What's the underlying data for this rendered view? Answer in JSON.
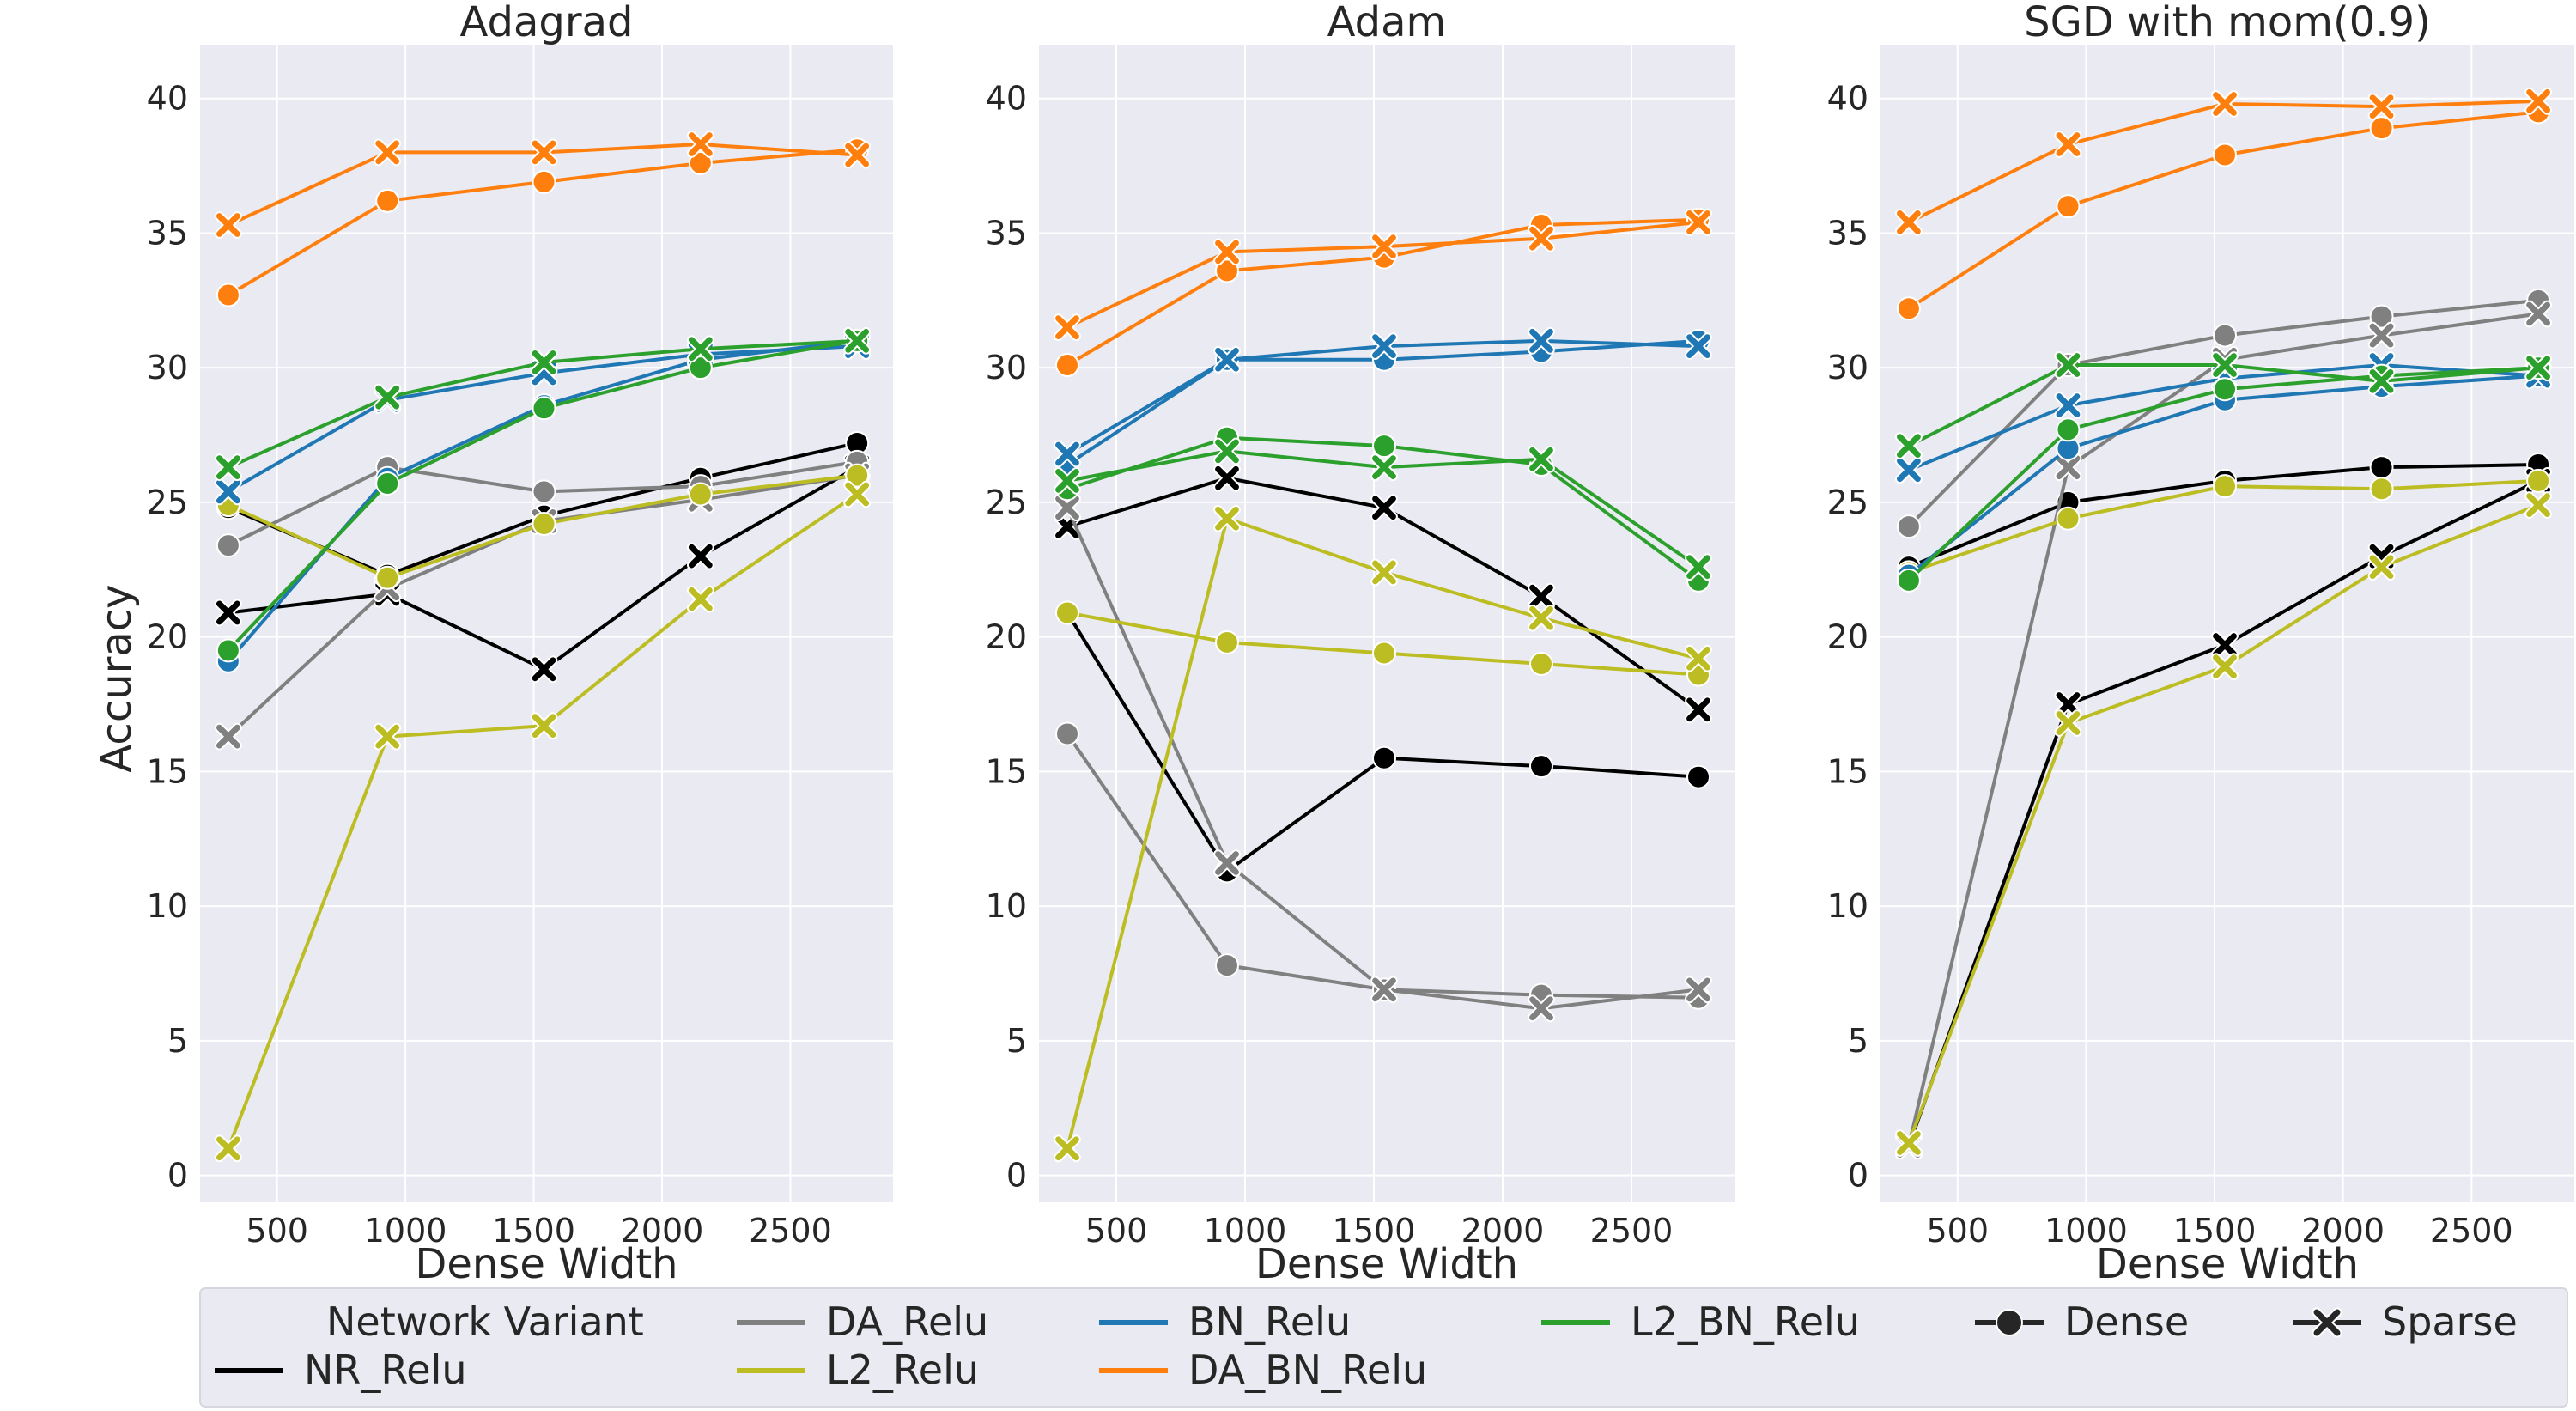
{
  "chart_data": {
    "type": "line",
    "y_axis_label": "Accuracy",
    "x_axis_label": "Dense Width",
    "x_ticks": [
      500,
      1000,
      1500,
      2000,
      2500
    ],
    "y_ticks": [
      0,
      5,
      10,
      15,
      20,
      25,
      30,
      35,
      40
    ],
    "xlim": [
      200,
      2900
    ],
    "ylim": [
      -1,
      42
    ],
    "x": [
      310,
      930,
      1540,
      2150,
      2760
    ],
    "legend": {
      "title": "Network Variant",
      "variants": [
        {
          "name": "NR_Relu",
          "color": "#000000"
        },
        {
          "name": "DA_Relu",
          "color": "#808080"
        },
        {
          "name": "L2_Relu",
          "color": "#bcbd22"
        },
        {
          "name": "BN_Relu",
          "color": "#1f77b4"
        },
        {
          "name": "DA_BN_Relu",
          "color": "#ff7f0e"
        },
        {
          "name": "L2_BN_Relu",
          "color": "#2ca02c"
        }
      ],
      "markers": [
        {
          "name": "Dense",
          "marker": "circle"
        },
        {
          "name": "Sparse",
          "marker": "x"
        }
      ]
    },
    "panels": [
      {
        "title": "Adagrad",
        "series": [
          {
            "variant": "NR_Relu",
            "marker": "Dense",
            "values": [
              24.8,
              22.3,
              24.5,
              25.9,
              27.2
            ]
          },
          {
            "variant": "NR_Relu",
            "marker": "Sparse",
            "values": [
              20.9,
              21.6,
              18.8,
              23.0,
              26.3
            ]
          },
          {
            "variant": "DA_Relu",
            "marker": "Dense",
            "values": [
              23.4,
              26.3,
              25.4,
              25.6,
              26.5
            ]
          },
          {
            "variant": "DA_Relu",
            "marker": "Sparse",
            "values": [
              16.3,
              21.8,
              24.3,
              25.1,
              26.0
            ]
          },
          {
            "variant": "L2_Relu",
            "marker": "Dense",
            "values": [
              24.9,
              22.2,
              24.2,
              25.3,
              26.0
            ]
          },
          {
            "variant": "L2_Relu",
            "marker": "Sparse",
            "values": [
              1.0,
              16.3,
              16.7,
              21.4,
              25.3
            ]
          },
          {
            "variant": "BN_Relu",
            "marker": "Dense",
            "values": [
              19.1,
              25.9,
              28.6,
              30.3,
              31.0
            ]
          },
          {
            "variant": "BN_Relu",
            "marker": "Sparse",
            "values": [
              25.4,
              28.8,
              29.8,
              30.5,
              30.8
            ]
          },
          {
            "variant": "DA_BN_Relu",
            "marker": "Dense",
            "values": [
              32.7,
              36.2,
              36.9,
              37.6,
              38.1
            ]
          },
          {
            "variant": "DA_BN_Relu",
            "marker": "Sparse",
            "values": [
              35.3,
              38.0,
              38.0,
              38.3,
              37.9
            ]
          },
          {
            "variant": "L2_BN_Relu",
            "marker": "Dense",
            "values": [
              19.5,
              25.7,
              28.5,
              30.0,
              31.0
            ]
          },
          {
            "variant": "L2_BN_Relu",
            "marker": "Sparse",
            "values": [
              26.3,
              28.9,
              30.2,
              30.7,
              31.0
            ]
          }
        ]
      },
      {
        "title": "Adam",
        "series": [
          {
            "variant": "NR_Relu",
            "marker": "Dense",
            "values": [
              20.9,
              11.3,
              15.5,
              15.2,
              14.8
            ]
          },
          {
            "variant": "NR_Relu",
            "marker": "Sparse",
            "values": [
              24.1,
              25.9,
              24.8,
              21.5,
              17.3
            ]
          },
          {
            "variant": "DA_Relu",
            "marker": "Dense",
            "values": [
              16.4,
              7.8,
              6.9,
              6.7,
              6.6
            ]
          },
          {
            "variant": "DA_Relu",
            "marker": "Sparse",
            "values": [
              24.8,
              11.6,
              6.9,
              6.2,
              6.9
            ]
          },
          {
            "variant": "L2_Relu",
            "marker": "Dense",
            "values": [
              20.9,
              19.8,
              19.4,
              19.0,
              18.6
            ]
          },
          {
            "variant": "L2_Relu",
            "marker": "Sparse",
            "values": [
              1.0,
              24.4,
              22.4,
              20.7,
              19.2
            ]
          },
          {
            "variant": "BN_Relu",
            "marker": "Dense",
            "values": [
              26.4,
              30.3,
              30.3,
              30.6,
              31.0
            ]
          },
          {
            "variant": "BN_Relu",
            "marker": "Sparse",
            "values": [
              26.8,
              30.3,
              30.8,
              31.0,
              30.8
            ]
          },
          {
            "variant": "DA_BN_Relu",
            "marker": "Dense",
            "values": [
              30.1,
              33.6,
              34.1,
              35.3,
              35.5
            ]
          },
          {
            "variant": "DA_BN_Relu",
            "marker": "Sparse",
            "values": [
              31.5,
              34.3,
              34.5,
              34.8,
              35.4
            ]
          },
          {
            "variant": "L2_BN_Relu",
            "marker": "Dense",
            "values": [
              25.5,
              27.4,
              27.1,
              26.4,
              22.1
            ]
          },
          {
            "variant": "L2_BN_Relu",
            "marker": "Sparse",
            "values": [
              25.8,
              26.9,
              26.3,
              26.6,
              22.6
            ]
          }
        ]
      },
      {
        "title": "SGD with mom(0.9)",
        "series": [
          {
            "variant": "NR_Relu",
            "marker": "Dense",
            "values": [
              22.6,
              25.0,
              25.8,
              26.3,
              26.4
            ]
          },
          {
            "variant": "NR_Relu",
            "marker": "Sparse",
            "values": [
              1.1,
              17.5,
              19.7,
              23.0,
              25.8
            ]
          },
          {
            "variant": "DA_Relu",
            "marker": "Dense",
            "values": [
              24.1,
              30.1,
              31.2,
              31.9,
              32.5
            ]
          },
          {
            "variant": "DA_Relu",
            "marker": "Sparse",
            "values": [
              1.1,
              26.3,
              30.3,
              31.2,
              32.0
            ]
          },
          {
            "variant": "L2_Relu",
            "marker": "Dense",
            "values": [
              22.4,
              24.4,
              25.6,
              25.5,
              25.8
            ]
          },
          {
            "variant": "L2_Relu",
            "marker": "Sparse",
            "values": [
              1.2,
              16.8,
              18.9,
              22.6,
              24.9
            ]
          },
          {
            "variant": "BN_Relu",
            "marker": "Dense",
            "values": [
              22.3,
              27.0,
              28.8,
              29.3,
              29.7
            ]
          },
          {
            "variant": "BN_Relu",
            "marker": "Sparse",
            "values": [
              26.2,
              28.6,
              29.6,
              30.1,
              29.7
            ]
          },
          {
            "variant": "DA_BN_Relu",
            "marker": "Dense",
            "values": [
              32.2,
              36.0,
              37.9,
              38.9,
              39.5
            ]
          },
          {
            "variant": "DA_BN_Relu",
            "marker": "Sparse",
            "values": [
              35.4,
              38.3,
              39.8,
              39.7,
              39.9
            ]
          },
          {
            "variant": "L2_BN_Relu",
            "marker": "Dense",
            "values": [
              22.1,
              27.7,
              29.2,
              29.7,
              30.0
            ]
          },
          {
            "variant": "L2_BN_Relu",
            "marker": "Sparse",
            "values": [
              27.1,
              30.1,
              30.1,
              29.5,
              30.0
            ]
          }
        ]
      }
    ]
  }
}
